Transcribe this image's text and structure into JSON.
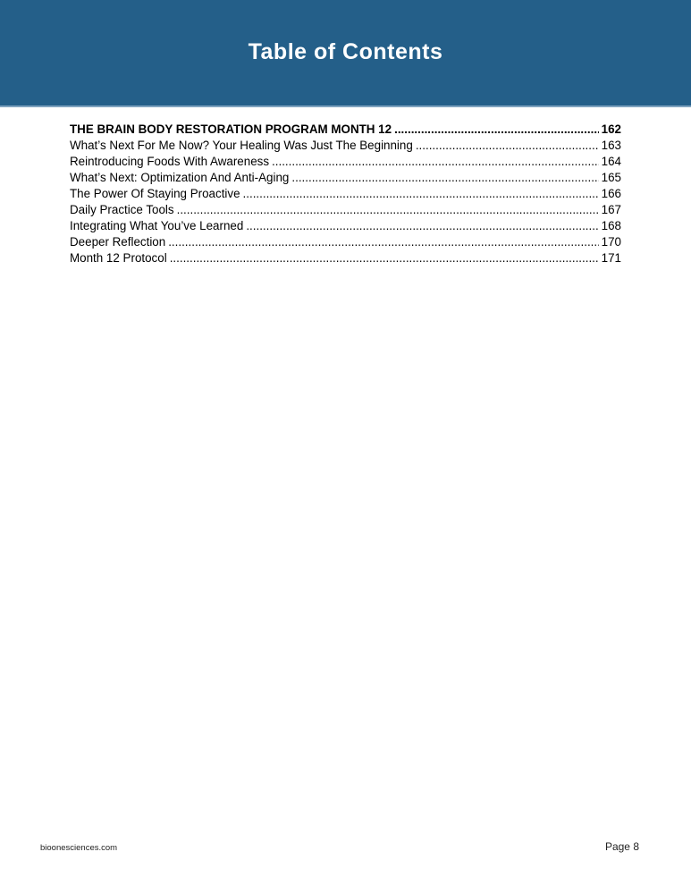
{
  "header": {
    "title": "Table of Contents",
    "color": "#245f89"
  },
  "toc": [
    {
      "title": "THE BRAIN BODY RESTORATION PROGRAM MONTH 12",
      "page": "162",
      "bold": true
    },
    {
      "title": "What’s Next For Me Now? Your Healing Was Just The Beginning",
      "page": "163"
    },
    {
      "title": "Reintroducing Foods With Awareness",
      "page": "164"
    },
    {
      "title": "What’s Next: Optimization And Anti-Aging",
      "page": "165"
    },
    {
      "title": "The Power Of Staying Proactive",
      "page": "166"
    },
    {
      "title": "Daily Practice Tools",
      "page": "167"
    },
    {
      "title": "Integrating What You’ve Learned",
      "page": "168"
    },
    {
      "title": "Deeper Reflection",
      "page": "170"
    },
    {
      "title": "Month 12 Protocol",
      "page": "171"
    }
  ],
  "footer": {
    "site": "bioonesciences.com",
    "page_label": "Page 8"
  }
}
